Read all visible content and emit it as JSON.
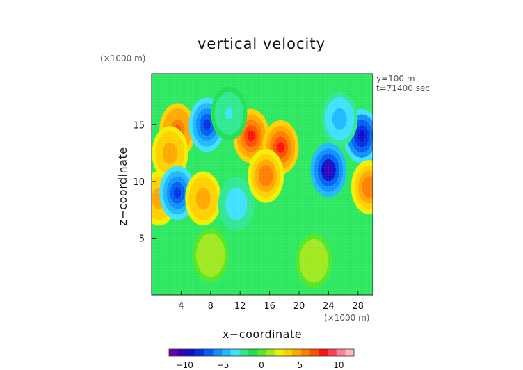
{
  "chart_data": {
    "type": "heatmap",
    "title": "vertical velocity",
    "xlabel": "x−coordinate",
    "ylabel": "z−coordinate",
    "x_unit": "(×1000 m)",
    "z_unit": "(×1000 m)",
    "annotations": [
      "y=100 m",
      "t=71400 sec"
    ],
    "xlim": [
      0,
      30
    ],
    "zlim": [
      0,
      19.5
    ],
    "x_ticks": [
      4,
      8,
      12,
      16,
      20,
      24,
      28
    ],
    "z_ticks": [
      5,
      10,
      15
    ],
    "colorbar": {
      "range": [
        -12,
        12
      ],
      "ticks": [
        -10,
        -5,
        0,
        5,
        10
      ],
      "colors": [
        "#6a00a8",
        "#3a00b8",
        "#1010c8",
        "#0030e0",
        "#0060f0",
        "#1090ff",
        "#20b8ff",
        "#40e0ff",
        "#30e890",
        "#20e050",
        "#50e828",
        "#a0e820",
        "#f0f000",
        "#ffd000",
        "#ffa800",
        "#ff8000",
        "#ff5000",
        "#ff1010",
        "#ff4050",
        "#ff8090",
        "#ffb8c0"
      ]
    },
    "cells": [
      {
        "x": 3.5,
        "z": 14.5,
        "value": 7
      },
      {
        "x": 2.5,
        "z": 12.5,
        "value": 5
      },
      {
        "x": 1.0,
        "z": 8.5,
        "value": 5
      },
      {
        "x": 3.5,
        "z": 9.0,
        "value": -8
      },
      {
        "x": 7.5,
        "z": 15.0,
        "value": -8
      },
      {
        "x": 7.0,
        "z": 8.5,
        "value": 5
      },
      {
        "x": 11.5,
        "z": 8.0,
        "value": -4
      },
      {
        "x": 13.5,
        "z": 14.0,
        "value": 8
      },
      {
        "x": 17.5,
        "z": 13.0,
        "value": 8
      },
      {
        "x": 15.5,
        "z": 10.5,
        "value": 6
      },
      {
        "x": 24.0,
        "z": 11.0,
        "value": -10
      },
      {
        "x": 28.5,
        "z": 14.0,
        "value": -9
      },
      {
        "x": 25.5,
        "z": 15.5,
        "value": -5
      },
      {
        "x": 29.5,
        "z": 9.5,
        "value": 6
      },
      {
        "x": 10.5,
        "z": 16.0,
        "value": -3
      },
      {
        "x": 22.0,
        "z": 3.0,
        "value": 1
      },
      {
        "x": 8.0,
        "z": 3.5,
        "value": 1
      }
    ]
  }
}
